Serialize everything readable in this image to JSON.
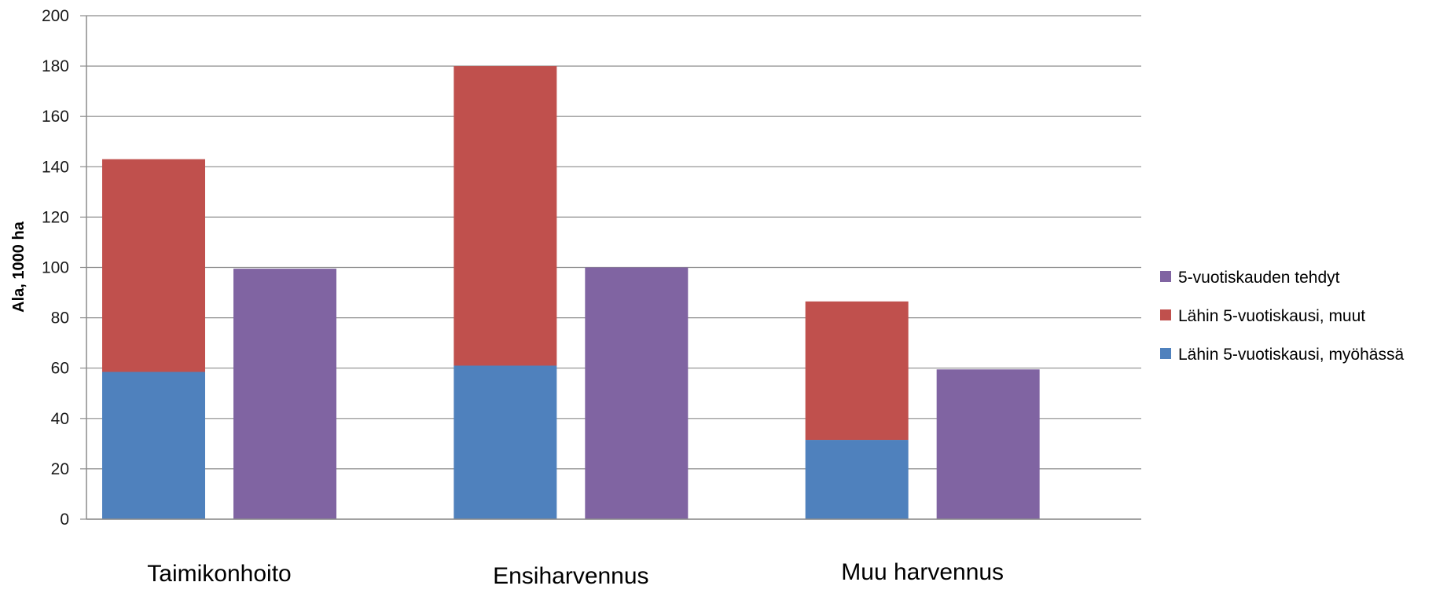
{
  "chart_data": {
    "type": "bar",
    "stacked": true,
    "categories": [
      "Taimikonhoito",
      "Ensiharvennus",
      "Muu harvennus"
    ],
    "ylabel": "Ala, 1000 ha",
    "ylim": [
      0,
      200
    ],
    "yticks": [
      0,
      20,
      40,
      60,
      80,
      100,
      120,
      140,
      160,
      180,
      200
    ],
    "grid": true,
    "legend_position": "right",
    "stacks": [
      {
        "stack": "Lähin 5-vuotiskausi",
        "series": [
          {
            "name": "Lähin 5-vuotiskausi, myöhässä",
            "color": "#4f81bd",
            "values": [
              58.5,
              61,
              31.5
            ]
          },
          {
            "name": "Lähin 5-vuotiskausi, muut",
            "color": "#c0504d",
            "values": [
              84.5,
              119,
              55
            ]
          }
        ]
      },
      {
        "stack": "5-vuotiskauden tehdyt",
        "series": [
          {
            "name": "5-vuotiskauden tehdyt",
            "color": "#8064a2",
            "values": [
              99.5,
              100,
              59.5
            ]
          }
        ]
      }
    ],
    "legend": [
      {
        "label": "5-vuotiskauden tehdyt",
        "color": "#8064a2"
      },
      {
        "label": "Lähin 5-vuotiskausi, muut",
        "color": "#c0504d"
      },
      {
        "label": "Lähin 5-vuotiskausi, myöhässä",
        "color": "#4f81bd"
      }
    ]
  }
}
